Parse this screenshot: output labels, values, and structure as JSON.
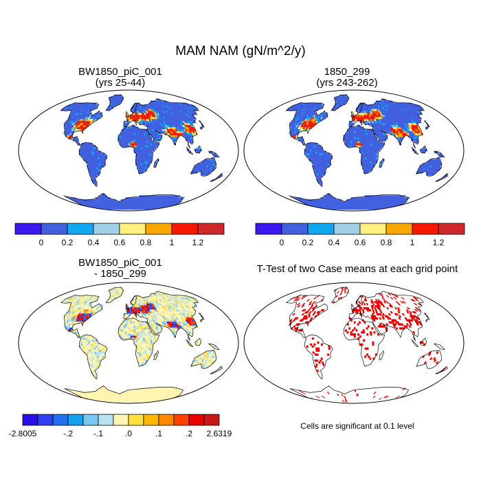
{
  "title": "MAM NAM (gN/m^2/y)",
  "colors": {
    "ocean": "#ffffff",
    "coastline": "#000000",
    "significant": "#ee0000"
  },
  "panels": [
    {
      "id": "case1",
      "title_line1": "BW1850_piC_001",
      "title_line2": "(yrs 25-44)"
    },
    {
      "id": "case2",
      "title_line1": "1850_299",
      "title_line2": "(yrs 243-262)"
    },
    {
      "id": "difference",
      "title_line1": "BW1850_piC_001",
      "title_line2": "- 1850_299"
    },
    {
      "id": "ttest",
      "title_line1": "T-Test of two Case means at each grid point",
      "title_line2": ""
    }
  ],
  "colorbars": {
    "absolute": {
      "colors": [
        "#3b18f0",
        "#4060e0",
        "#10a8f0",
        "#a0d0e8",
        "#fff080",
        "#f8a800",
        "#f81800",
        "#d02828"
      ],
      "labels": [
        "0",
        "0.2",
        "0.4",
        "0.6",
        "0.8",
        "1",
        "1.2"
      ]
    },
    "difference": {
      "colors": [
        "#2a10e8",
        "#3040f0",
        "#2070f0",
        "#18a0f0",
        "#78c8f0",
        "#b8e0f0",
        "#fff4b0",
        "#ffe040",
        "#ffb800",
        "#ff8800",
        "#ff4000",
        "#e80000",
        "#c81818"
      ],
      "labels": [
        "-2.8005",
        "-.2",
        "-.1",
        ".0",
        ".1",
        ".2",
        "2.6319"
      ]
    }
  },
  "significance_note": "Cells are significant at 0.1 level"
}
